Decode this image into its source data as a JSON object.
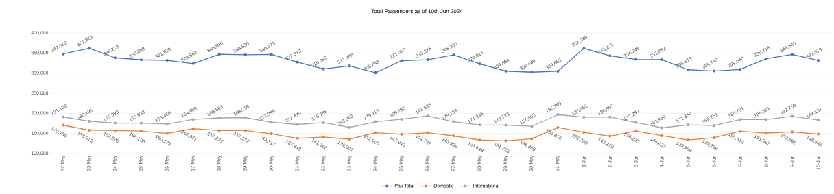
{
  "chart_data": {
    "type": "line",
    "title": "Total Passengers as of 10th Jun 2024",
    "categories": [
      "12-May",
      "13-May",
      "14-May",
      "15-May",
      "16-May",
      "17-May",
      "18-May",
      "19-May",
      "20-May",
      "21-May",
      "22-May",
      "23-May",
      "24-May",
      "25-May",
      "26-May",
      "27-May",
      "28-May",
      "29-May",
      "30-May",
      "31-May",
      "1-Jun",
      "2-Jun",
      "3-Jun",
      "4-Jun",
      "5-Jun",
      "6-Jun",
      "7-Jun",
      "8-Jun",
      "9-Jun",
      "10-Jun"
    ],
    "series": [
      {
        "name": "Pax Total",
        "color": "#4472c4",
        "values": [
          347612,
          361923,
          338213,
          333098,
          331820,
          323642,
          346860,
          345830,
          346373,
          327313,
          310289,
          317948,
          300843,
          331010,
          333226,
          345380,
          323014,
          304894,
          302449,
          304663,
          361585,
          343223,
          334245,
          333482,
          308373,
          305349,
          309040,
          335718,
          346646,
          331579
        ],
        "value_labels": [
          "347,612",
          "361,923",
          "338,213",
          "333,098",
          "331,820",
          "323,642",
          "346,860",
          "345,830",
          "346,373",
          "327,313",
          "310,289",
          "317,948",
          "300,843",
          "331,010",
          "333,226",
          "345,380",
          "323,014",
          "304,894",
          "302,449",
          "304,663",
          "361,585",
          "343,223",
          "334,245",
          "333,482",
          "308,373",
          "305,349",
          "309,040",
          "335,718",
          "346,646",
          "331,579"
        ]
      },
      {
        "name": "Domestic",
        "color": "#ed7d31",
        "values": [
          170755,
          158018,
          157205,
          156190,
          150173,
          161971,
          157227,
          157157,
          149317,
          137819,
          141162,
          135801,
          151900,
          147943,
          151742,
          143855,
          133648,
          131728,
          136860,
          164816,
          152760,
          143278,
          156225,
          144437,
          133999,
          139289,
          155612,
          151097,
          153891,
          148448
        ],
        "value_labels": [
          "170,755",
          "158,018",
          "157,205",
          "156,190",
          "150,173",
          "161,971",
          "157,227",
          "157,157",
          "149,317",
          "137,819",
          "141,162",
          "135,801",
          "151,900",
          "147,943",
          "151,742",
          "143,855",
          "133,648",
          "131,728",
          "136,860",
          "164,816",
          "152,760",
          "143,278",
          "156,225",
          "144,437",
          "133,999",
          "139,289",
          "155,612",
          "151,097",
          "153,891",
          "148,448"
        ]
      },
      {
        "name": "International",
        "color": "#a5a5a5",
        "values": [
          191168,
          180195,
          175893,
          175630,
          173469,
          184889,
          188603,
          189216,
          177996,
          172470,
          176786,
          165042,
          179110,
          185283,
          193638,
          179159,
          171246,
          170721,
          167803,
          196769,
          190463,
          190967,
          177257,
          163936,
          171350,
          169751,
          184701,
          184621,
          192755,
          183131
        ],
        "value_labels": [
          "191,168",
          "180,195",
          "175,893",
          "175,630",
          "173,469",
          "184,889",
          "188,603",
          "189,216",
          "177,996",
          "172,470",
          "176,786",
          "165,042",
          "179,110",
          "185,283",
          "193,638",
          "179,159",
          "171,246",
          "170,721",
          "167,803",
          "196,769",
          "190,463",
          "190,967",
          "177,257",
          "163,936",
          "171,350",
          "169,751",
          "184,701",
          "184,621",
          "192,755",
          "183,131"
        ]
      }
    ],
    "ylim": [
      100000,
      400000
    ],
    "yticks": [
      {
        "value": 100000,
        "label": "100,000"
      },
      {
        "value": 150000,
        "label": "150,000"
      },
      {
        "value": 200000,
        "label": "200,000"
      },
      {
        "value": 250000,
        "label": "250,000"
      },
      {
        "value": 300000,
        "label": "300,000"
      },
      {
        "value": 350000,
        "label": "350,000"
      },
      {
        "value": 400000,
        "label": "400,000"
      }
    ],
    "grid": "y",
    "legend": "bottom",
    "marker": "circle",
    "line_style": "solid"
  }
}
